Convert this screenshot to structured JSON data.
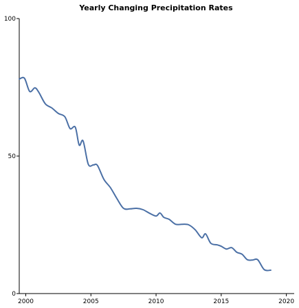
{
  "chart_data": {
    "type": "line",
    "title": "Yearly Changing Precipitation Rates",
    "xlabel": "",
    "ylabel": "",
    "xlim": [
      1999.5,
      2020.6
    ],
    "ylim": [
      0,
      100
    ],
    "x_ticks": [
      2000,
      2005,
      2010,
      2015,
      2020
    ],
    "y_ticks": [
      0,
      50,
      100
    ],
    "grid": false,
    "legend": "none",
    "series": [
      {
        "color": "#4a6fa5",
        "points": [
          [
            1999.5,
            78.0
          ],
          [
            1999.9,
            78.3
          ],
          [
            2000.3,
            73.5
          ],
          [
            2000.7,
            74.8
          ],
          [
            2001.0,
            73.2
          ],
          [
            2001.5,
            69.0
          ],
          [
            2002.0,
            67.5
          ],
          [
            2002.5,
            65.5
          ],
          [
            2003.0,
            64.3
          ],
          [
            2003.4,
            60.0
          ],
          [
            2003.8,
            60.5
          ],
          [
            2004.1,
            54.0
          ],
          [
            2004.4,
            55.5
          ],
          [
            2004.8,
            47.0
          ],
          [
            2005.2,
            46.8
          ],
          [
            2005.5,
            46.6
          ],
          [
            2006.0,
            41.5
          ],
          [
            2006.5,
            38.5
          ],
          [
            2007.0,
            34.5
          ],
          [
            2007.5,
            31.0
          ],
          [
            2008.0,
            30.8
          ],
          [
            2008.5,
            31.0
          ],
          [
            2009.0,
            30.5
          ],
          [
            2009.5,
            29.2
          ],
          [
            2010.0,
            28.2
          ],
          [
            2010.3,
            29.3
          ],
          [
            2010.6,
            27.7
          ],
          [
            2011.0,
            27.0
          ],
          [
            2011.5,
            25.2
          ],
          [
            2012.0,
            25.2
          ],
          [
            2012.5,
            25.0
          ],
          [
            2013.0,
            23.2
          ],
          [
            2013.5,
            20.3
          ],
          [
            2013.8,
            21.7
          ],
          [
            2014.2,
            18.3
          ],
          [
            2014.7,
            17.7
          ],
          [
            2015.0,
            17.2
          ],
          [
            2015.4,
            16.2
          ],
          [
            2015.8,
            16.7
          ],
          [
            2016.2,
            15.0
          ],
          [
            2016.6,
            14.3
          ],
          [
            2017.0,
            12.3
          ],
          [
            2017.4,
            12.2
          ],
          [
            2017.8,
            12.3
          ],
          [
            2018.3,
            8.7
          ],
          [
            2018.8,
            8.5
          ]
        ]
      }
    ]
  }
}
